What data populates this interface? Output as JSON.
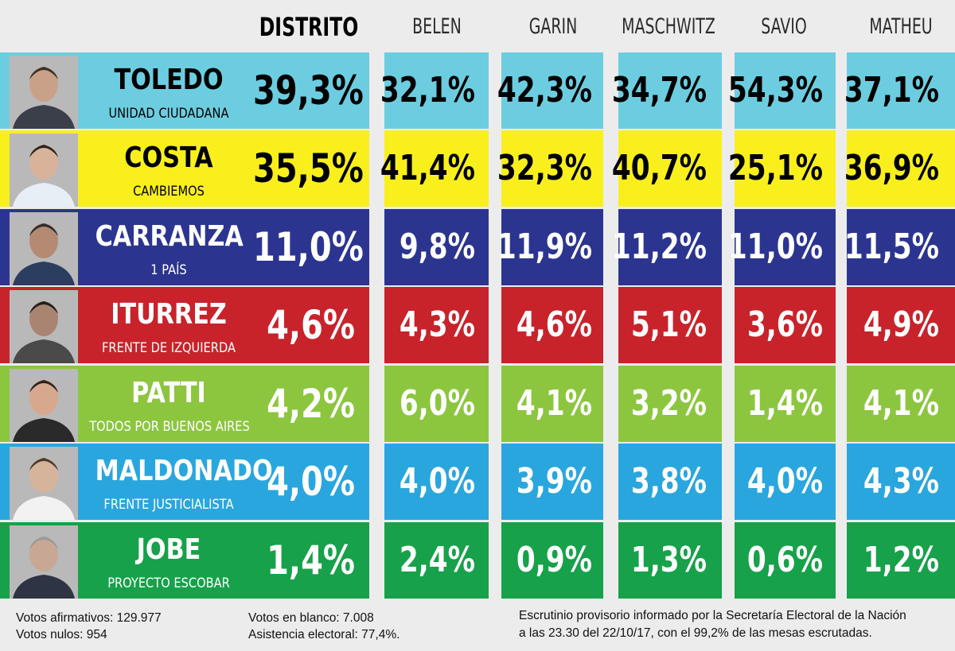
{
  "headers": {
    "distrito": "DISTRITO",
    "localities": [
      "BELEN",
      "GARIN",
      "MASCHWITZ",
      "SAVIO",
      "MATHEU"
    ]
  },
  "colors": {
    "toledo": "#6ccde0",
    "costa": "#f9ef1c",
    "carranza": "#2b3590",
    "iturrez": "#c8232b",
    "patti": "#8cc63f",
    "maldonado": "#2aa6de",
    "jobe": "#17a14a"
  },
  "chart_data": {
    "type": "table",
    "columns": [
      "DISTRITO",
      "BELEN",
      "GARIN",
      "MASCHWITZ",
      "SAVIO",
      "MATHEU"
    ],
    "rows": [
      {
        "key": "toledo",
        "name": "TOLEDO",
        "party": "UNIDAD CIUDADANA",
        "color": "#6ccde0",
        "text_color": "#000000",
        "values": [
          "39,3%",
          "32,1%",
          "42,3%",
          "34,7%",
          "54,3%",
          "37,1%"
        ]
      },
      {
        "key": "costa",
        "name": "COSTA",
        "party": "CAMBIEMOS",
        "color": "#f9ef1c",
        "text_color": "#000000",
        "values": [
          "35,5%",
          "41,4%",
          "32,3%",
          "40,7%",
          "25,1%",
          "36,9%"
        ]
      },
      {
        "key": "carranza",
        "name": "CARRANZA",
        "party": "1 PAÍS",
        "color": "#2b3590",
        "text_color": "#ffffff",
        "values": [
          "11,0%",
          "9,8%",
          "11,9%",
          "11,2%",
          "11,0%",
          "11,5%"
        ]
      },
      {
        "key": "iturrez",
        "name": "ITURREZ",
        "party": "FRENTE DE IZQUIERDA",
        "color": "#c8232b",
        "text_color": "#ffffff",
        "values": [
          "4,6%",
          "4,3%",
          "4,6%",
          "5,1%",
          "3,6%",
          "4,9%"
        ]
      },
      {
        "key": "patti",
        "name": "PATTI",
        "party": "TODOS POR BUENOS AIRES",
        "color": "#8cc63f",
        "text_color": "#ffffff",
        "values": [
          "4,2%",
          "6,0%",
          "4,1%",
          "3,2%",
          "1,4%",
          "4,1%"
        ]
      },
      {
        "key": "maldonado",
        "name": "MALDONADO",
        "party": "FRENTE JUSTICIALISTA",
        "color": "#2aa6de",
        "text_color": "#ffffff",
        "values": [
          "4,0%",
          "4,0%",
          "3,9%",
          "3,8%",
          "4,0%",
          "4,3%"
        ]
      },
      {
        "key": "jobe",
        "name": "JOBE",
        "party": "PROYECTO ESCOBAR",
        "color": "#17a14a",
        "text_color": "#ffffff",
        "values": [
          "1,4%",
          "2,4%",
          "0,9%",
          "1,3%",
          "0,6%",
          "1,2%"
        ]
      }
    ]
  },
  "footer": {
    "votos_afirmativos": "Votos afirmativos: 129.977",
    "votos_nulos": "Votos nulos: 954",
    "votos_blanco": "Votos en blanco: 7.008",
    "asistencia": "Asistencia electoral: 77,4%.",
    "escrutinio_1": "Escrutinio provisorio informado por la Secretaría Electoral de la Nación",
    "escrutinio_2": "a las 23.30 del 22/10/17, con el 99,2% de las mesas escrutadas."
  }
}
